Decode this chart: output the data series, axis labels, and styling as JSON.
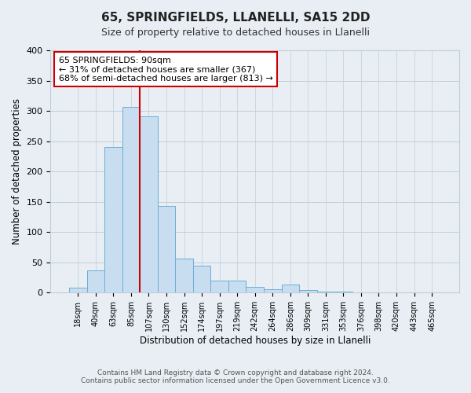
{
  "title": "65, SPRINGFIELDS, LLANELLI, SA15 2DD",
  "subtitle": "Size of property relative to detached houses in Llanelli",
  "xlabel": "Distribution of detached houses by size in Llanelli",
  "ylabel": "Number of detached properties",
  "bar_labels": [
    "18sqm",
    "40sqm",
    "63sqm",
    "85sqm",
    "107sqm",
    "130sqm",
    "152sqm",
    "174sqm",
    "197sqm",
    "219sqm",
    "242sqm",
    "264sqm",
    "286sqm",
    "309sqm",
    "331sqm",
    "353sqm",
    "376sqm",
    "398sqm",
    "420sqm",
    "443sqm",
    "465sqm"
  ],
  "bar_values": [
    8,
    37,
    240,
    307,
    291,
    143,
    56,
    44,
    20,
    20,
    10,
    5,
    13,
    4,
    2,
    2,
    1,
    1,
    1,
    1,
    1
  ],
  "bar_color": "#c8ddf0",
  "bar_edge_color": "#6baed6",
  "vline_x": 3.5,
  "vline_color": "#cc0000",
  "ylim": [
    0,
    400
  ],
  "yticks": [
    0,
    50,
    100,
    150,
    200,
    250,
    300,
    350,
    400
  ],
  "annotation_title": "65 SPRINGFIELDS: 90sqm",
  "annotation_line1": "← 31% of detached houses are smaller (367)",
  "annotation_line2": "68% of semi-detached houses are larger (813) →",
  "annotation_box_color": "#ffffff",
  "annotation_box_edge": "#cc0000",
  "footer_line1": "Contains HM Land Registry data © Crown copyright and database right 2024.",
  "footer_line2": "Contains public sector information licensed under the Open Government Licence v3.0.",
  "background_color": "#e8eef4",
  "plot_background": "#e8eef4",
  "grid_color": "#c0cdd8"
}
